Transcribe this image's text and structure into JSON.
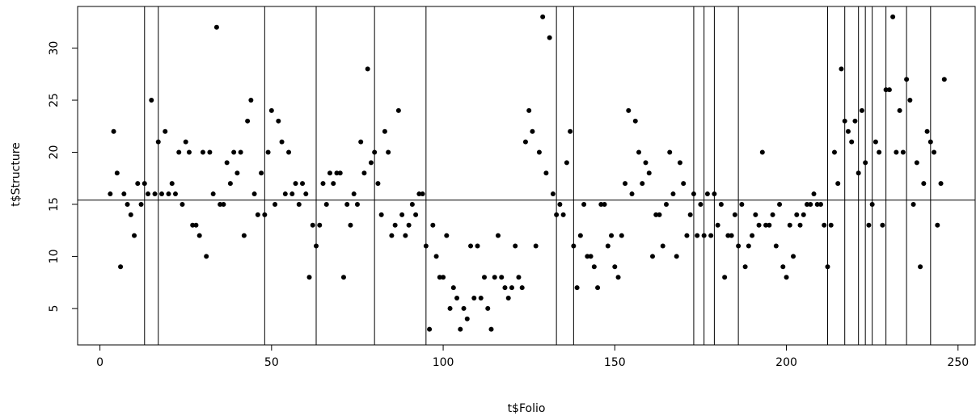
{
  "chart_data": {
    "type": "scatter",
    "xlabel": "t$Folio",
    "ylabel": "t$Structure",
    "xlim": [
      -6.5,
      255
    ],
    "ylim": [
      1.5,
      34
    ],
    "x_ticks": [
      "0",
      "50",
      "100",
      "150",
      "200",
      "250"
    ],
    "y_ticks": [
      "5",
      "10",
      "15",
      "20",
      "25",
      "30"
    ],
    "hline": 15.4,
    "vlines": [
      13,
      17,
      48,
      63,
      80,
      95,
      133,
      138,
      173,
      176,
      179,
      186,
      212,
      217,
      221,
      223,
      225,
      229,
      235,
      242
    ],
    "points": [
      [
        3,
        16
      ],
      [
        4,
        22
      ],
      [
        5,
        18
      ],
      [
        6,
        9
      ],
      [
        7,
        16
      ],
      [
        8,
        15
      ],
      [
        9,
        14
      ],
      [
        10,
        12
      ],
      [
        11,
        17
      ],
      [
        12,
        15
      ],
      [
        13,
        17
      ],
      [
        14,
        16
      ],
      [
        15,
        25
      ],
      [
        16,
        16
      ],
      [
        17,
        21
      ],
      [
        18,
        16
      ],
      [
        19,
        22
      ],
      [
        20,
        16
      ],
      [
        21,
        17
      ],
      [
        22,
        16
      ],
      [
        23,
        20
      ],
      [
        24,
        15
      ],
      [
        25,
        21
      ],
      [
        26,
        20
      ],
      [
        27,
        13
      ],
      [
        28,
        13
      ],
      [
        29,
        12
      ],
      [
        30,
        20
      ],
      [
        31,
        10
      ],
      [
        32,
        20
      ],
      [
        33,
        16
      ],
      [
        34,
        32
      ],
      [
        35,
        15
      ],
      [
        36,
        15
      ],
      [
        37,
        19
      ],
      [
        38,
        17
      ],
      [
        39,
        20
      ],
      [
        40,
        18
      ],
      [
        41,
        20
      ],
      [
        42,
        12
      ],
      [
        43,
        23
      ],
      [
        44,
        25
      ],
      [
        45,
        16
      ],
      [
        46,
        14
      ],
      [
        47,
        18
      ],
      [
        48,
        14
      ],
      [
        49,
        20
      ],
      [
        50,
        24
      ],
      [
        51,
        15
      ],
      [
        52,
        23
      ],
      [
        53,
        21
      ],
      [
        54,
        16
      ],
      [
        55,
        20
      ],
      [
        56,
        16
      ],
      [
        57,
        17
      ],
      [
        58,
        15
      ],
      [
        59,
        17
      ],
      [
        60,
        16
      ],
      [
        61,
        8
      ],
      [
        62,
        13
      ],
      [
        63,
        11
      ],
      [
        64,
        13
      ],
      [
        65,
        17
      ],
      [
        66,
        15
      ],
      [
        67,
        18
      ],
      [
        68,
        17
      ],
      [
        69,
        18
      ],
      [
        70,
        18
      ],
      [
        71,
        8
      ],
      [
        72,
        15
      ],
      [
        73,
        13
      ],
      [
        74,
        16
      ],
      [
        75,
        15
      ],
      [
        76,
        21
      ],
      [
        77,
        18
      ],
      [
        78,
        28
      ],
      [
        79,
        19
      ],
      [
        80,
        20
      ],
      [
        81,
        17
      ],
      [
        82,
        14
      ],
      [
        83,
        22
      ],
      [
        84,
        20
      ],
      [
        85,
        12
      ],
      [
        86,
        13
      ],
      [
        87,
        24
      ],
      [
        88,
        14
      ],
      [
        89,
        12
      ],
      [
        90,
        13
      ],
      [
        91,
        15
      ],
      [
        92,
        14
      ],
      [
        93,
        16
      ],
      [
        94,
        16
      ],
      [
        95,
        11
      ],
      [
        96,
        3
      ],
      [
        97,
        13
      ],
      [
        98,
        10
      ],
      [
        99,
        8
      ],
      [
        100,
        8
      ],
      [
        101,
        12
      ],
      [
        102,
        5
      ],
      [
        103,
        7
      ],
      [
        104,
        6
      ],
      [
        105,
        3
      ],
      [
        106,
        5
      ],
      [
        107,
        4
      ],
      [
        108,
        11
      ],
      [
        109,
        6
      ],
      [
        110,
        11
      ],
      [
        111,
        6
      ],
      [
        112,
        8
      ],
      [
        113,
        5
      ],
      [
        114,
        3
      ],
      [
        115,
        8
      ],
      [
        116,
        12
      ],
      [
        117,
        8
      ],
      [
        118,
        7
      ],
      [
        119,
        6
      ],
      [
        120,
        7
      ],
      [
        121,
        11
      ],
      [
        122,
        8
      ],
      [
        123,
        7
      ],
      [
        124,
        21
      ],
      [
        125,
        24
      ],
      [
        126,
        22
      ],
      [
        127,
        11
      ],
      [
        128,
        20
      ],
      [
        129,
        33
      ],
      [
        130,
        18
      ],
      [
        131,
        31
      ],
      [
        132,
        16
      ],
      [
        133,
        14
      ],
      [
        134,
        15
      ],
      [
        135,
        14
      ],
      [
        136,
        19
      ],
      [
        137,
        22
      ],
      [
        138,
        11
      ],
      [
        139,
        7
      ],
      [
        140,
        12
      ],
      [
        141,
        15
      ],
      [
        142,
        10
      ],
      [
        143,
        10
      ],
      [
        144,
        9
      ],
      [
        145,
        7
      ],
      [
        146,
        15
      ],
      [
        147,
        15
      ],
      [
        148,
        11
      ],
      [
        149,
        12
      ],
      [
        150,
        9
      ],
      [
        151,
        8
      ],
      [
        152,
        12
      ],
      [
        153,
        17
      ],
      [
        154,
        24
      ],
      [
        155,
        16
      ],
      [
        156,
        23
      ],
      [
        157,
        20
      ],
      [
        158,
        17
      ],
      [
        159,
        19
      ],
      [
        160,
        18
      ],
      [
        161,
        10
      ],
      [
        162,
        14
      ],
      [
        163,
        14
      ],
      [
        164,
        11
      ],
      [
        165,
        15
      ],
      [
        166,
        20
      ],
      [
        167,
        16
      ],
      [
        168,
        10
      ],
      [
        169,
        19
      ],
      [
        170,
        17
      ],
      [
        171,
        12
      ],
      [
        172,
        14
      ],
      [
        173,
        16
      ],
      [
        174,
        12
      ],
      [
        175,
        15
      ],
      [
        176,
        12
      ],
      [
        177,
        16
      ],
      [
        178,
        12
      ],
      [
        179,
        16
      ],
      [
        180,
        13
      ],
      [
        181,
        15
      ],
      [
        182,
        8
      ],
      [
        183,
        12
      ],
      [
        184,
        12
      ],
      [
        185,
        14
      ],
      [
        186,
        11
      ],
      [
        187,
        15
      ],
      [
        188,
        9
      ],
      [
        189,
        11
      ],
      [
        190,
        12
      ],
      [
        191,
        14
      ],
      [
        192,
        13
      ],
      [
        193,
        20
      ],
      [
        194,
        13
      ],
      [
        195,
        13
      ],
      [
        196,
        14
      ],
      [
        197,
        11
      ],
      [
        198,
        15
      ],
      [
        199,
        9
      ],
      [
        200,
        8
      ],
      [
        201,
        13
      ],
      [
        202,
        10
      ],
      [
        203,
        14
      ],
      [
        204,
        13
      ],
      [
        205,
        14
      ],
      [
        206,
        15
      ],
      [
        207,
        15
      ],
      [
        208,
        16
      ],
      [
        209,
        15
      ],
      [
        210,
        15
      ],
      [
        211,
        13
      ],
      [
        212,
        9
      ],
      [
        213,
        13
      ],
      [
        214,
        20
      ],
      [
        215,
        17
      ],
      [
        216,
        28
      ],
      [
        217,
        23
      ],
      [
        218,
        22
      ],
      [
        219,
        21
      ],
      [
        220,
        23
      ],
      [
        221,
        18
      ],
      [
        222,
        24
      ],
      [
        223,
        19
      ],
      [
        224,
        13
      ],
      [
        225,
        15
      ],
      [
        226,
        21
      ],
      [
        227,
        20
      ],
      [
        228,
        13
      ],
      [
        229,
        26
      ],
      [
        230,
        26
      ],
      [
        231,
        33
      ],
      [
        232,
        20
      ],
      [
        233,
        24
      ],
      [
        234,
        20
      ],
      [
        235,
        27
      ],
      [
        236,
        25
      ],
      [
        237,
        15
      ],
      [
        238,
        19
      ],
      [
        239,
        9
      ],
      [
        240,
        17
      ],
      [
        241,
        22
      ],
      [
        242,
        21
      ],
      [
        243,
        20
      ],
      [
        244,
        13
      ],
      [
        245,
        17
      ],
      [
        246,
        27
      ]
    ]
  }
}
